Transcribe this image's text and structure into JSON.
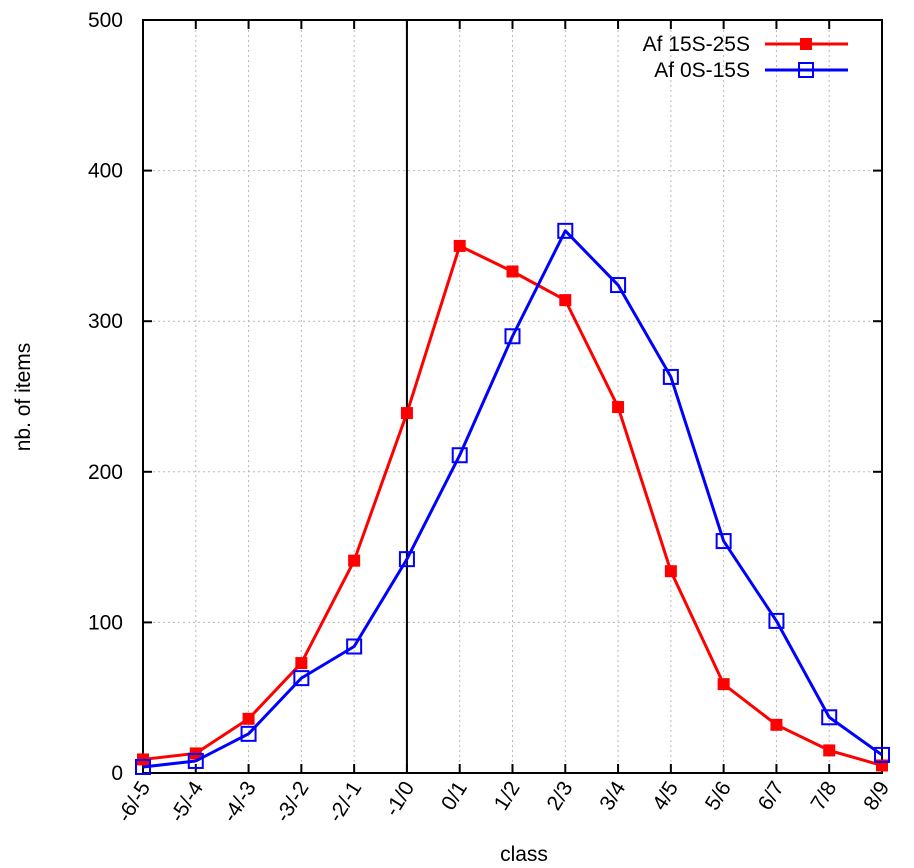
{
  "chart_data": {
    "type": "line",
    "xlabel": "class",
    "ylabel": "nb. of items",
    "ylim": [
      0,
      500
    ],
    "yticks": [
      0,
      100,
      200,
      300,
      400,
      500
    ],
    "grid": true,
    "legend_position": "top-right",
    "categories": [
      "-6/-5",
      "-5/-4",
      "-4/-3",
      "-3/-2",
      "-2/-1",
      "-1/0",
      "0/1",
      "1/2",
      "2/3",
      "3/4",
      "4/5",
      "5/6",
      "6/7",
      "7/8",
      "8/9"
    ],
    "vline_category": "-1/0",
    "series": [
      {
        "name": "Af 15S-25S",
        "color": "#ff0000",
        "marker": "filled-square",
        "values": [
          9,
          13,
          36,
          73,
          141,
          239,
          350,
          333,
          314,
          243,
          134,
          59,
          32,
          15,
          5
        ]
      },
      {
        "name": "Af 0S-15S",
        "color": "#0000ff",
        "marker": "open-square",
        "values": [
          4,
          8,
          26,
          63,
          84,
          142,
          211,
          290,
          360,
          324,
          263,
          154,
          101,
          37,
          12
        ]
      }
    ]
  }
}
